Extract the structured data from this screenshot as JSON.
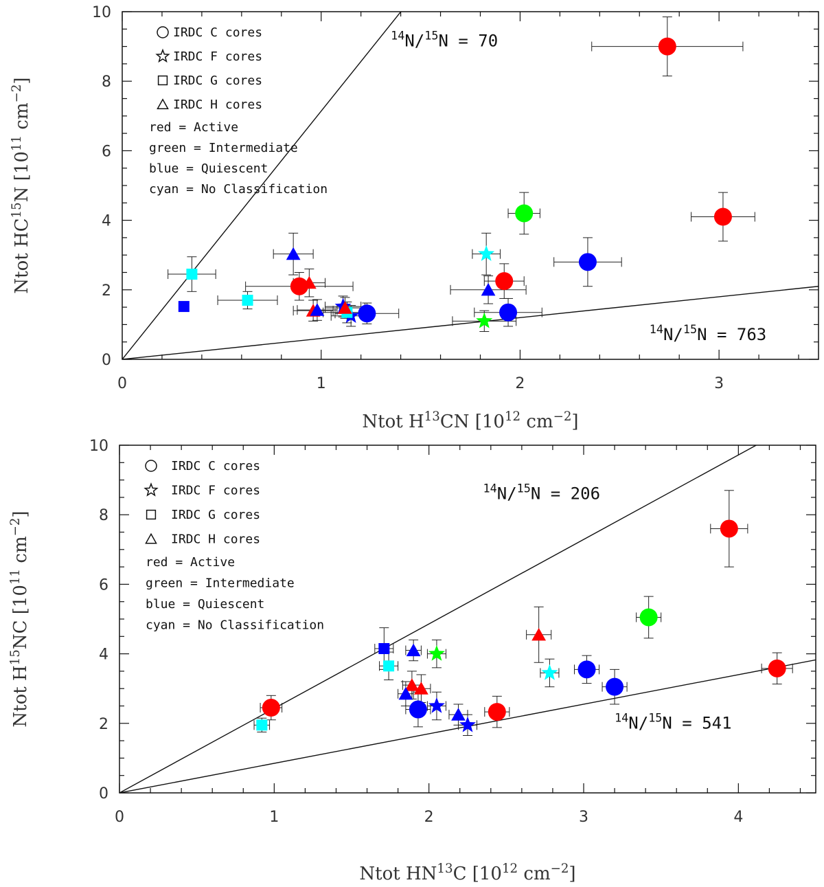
{
  "chart_data": [
    {
      "type": "scatter",
      "xlabel": "Ntot H13CN [1012 cm−2]",
      "xlabel_parts": [
        {
          "text": "Ntot H",
          "sup": false
        },
        {
          "text": "13",
          "sup": true
        },
        {
          "text": "CN [10",
          "sup": false
        },
        {
          "text": "12",
          "sup": true
        },
        {
          "text": " cm",
          "sup": false
        },
        {
          "text": "−2",
          "sup": true
        },
        {
          "text": "]",
          "sup": false
        }
      ],
      "ylabel": "Ntot HC15N [1011 cm−2]",
      "ylabel_parts": [
        {
          "text": "Ntot HC",
          "sup": false
        },
        {
          "text": "15",
          "sup": true
        },
        {
          "text": "N [10",
          "sup": false
        },
        {
          "text": "11",
          "sup": true
        },
        {
          "text": " cm",
          "sup": false
        },
        {
          "text": "−2",
          "sup": true
        },
        {
          "text": "]",
          "sup": false
        }
      ],
      "xlim": [
        0,
        3.5
      ],
      "ylim": [
        0,
        10
      ],
      "xticks": [
        "0",
        "1",
        "2",
        "3"
      ],
      "yticks": [
        "0",
        "2",
        "4",
        "6",
        "8",
        "10"
      ],
      "legend": {
        "shapes": [
          {
            "shape": "circle",
            "label": "IRDC C cores"
          },
          {
            "shape": "star",
            "label": "IRDC F cores"
          },
          {
            "shape": "square",
            "label": "IRDC G cores"
          },
          {
            "shape": "triangle",
            "label": "IRDC H cores"
          }
        ],
        "colors": [
          "red = Active",
          "green = Intermediate",
          "blue = Quiescent",
          "cyan = No Classification"
        ]
      },
      "ratio_lines": [
        {
          "label_parts": [
            {
              "text": "14",
              "sup": true
            },
            {
              "text": "N/",
              "sup": false
            },
            {
              "text": "15",
              "sup": true
            },
            {
              "text": "N = 70",
              "sup": false
            }
          ],
          "slope": 7.14,
          "text_x": 1.35,
          "text_y": 9.0
        },
        {
          "label_parts": [
            {
              "text": "14",
              "sup": true
            },
            {
              "text": "N/",
              "sup": false
            },
            {
              "text": "15",
              "sup": true
            },
            {
              "text": "N = 763",
              "sup": false
            }
          ],
          "slope": 0.6,
          "text_x": 2.65,
          "text_y": 0.55
        }
      ],
      "colors": {
        "red": "#ff0000",
        "green": "#00ff00",
        "blue": "#0000ff",
        "cyan": "#00ffff"
      },
      "points": [
        {
          "x": 2.74,
          "y": 9.0,
          "xerr": 0.38,
          "yerr": 0.85,
          "shape": "circle",
          "color": "red"
        },
        {
          "x": 3.02,
          "y": 4.1,
          "xerr": 0.16,
          "yerr": 0.7,
          "shape": "circle",
          "color": "red"
        },
        {
          "x": 2.02,
          "y": 4.2,
          "xerr": 0.08,
          "yerr": 0.6,
          "shape": "circle",
          "color": "green"
        },
        {
          "x": 2.34,
          "y": 2.8,
          "xerr": 0.17,
          "yerr": 0.7,
          "shape": "circle",
          "color": "blue"
        },
        {
          "x": 1.92,
          "y": 2.25,
          "xerr": 0.1,
          "yerr": 0.5,
          "shape": "circle",
          "color": "red"
        },
        {
          "x": 1.94,
          "y": 1.35,
          "xerr": 0.17,
          "yerr": 0.4,
          "shape": "circle",
          "color": "blue"
        },
        {
          "x": 0.89,
          "y": 2.1,
          "xerr": 0.27,
          "yerr": 0.4,
          "shape": "circle",
          "color": "red"
        },
        {
          "x": 1.23,
          "y": 1.32,
          "xerr": 0.16,
          "yerr": 0.3,
          "shape": "circle",
          "color": "blue"
        },
        {
          "x": 1.83,
          "y": 3.03,
          "xerr": 0.07,
          "yerr": 0.6,
          "shape": "star",
          "color": "cyan"
        },
        {
          "x": 1.82,
          "y": 1.1,
          "xerr": 0.16,
          "yerr": 0.3,
          "shape": "star",
          "color": "green"
        },
        {
          "x": 1.11,
          "y": 1.52,
          "xerr": 0.09,
          "yerr": 0.3,
          "shape": "star",
          "color": "blue"
        },
        {
          "x": 1.15,
          "y": 1.25,
          "xerr": 0.1,
          "yerr": 0.3,
          "shape": "star",
          "color": "blue"
        },
        {
          "x": 0.31,
          "y": 1.52,
          "xerr": 0.0,
          "yerr": 0.0,
          "shape": "square",
          "color": "blue"
        },
        {
          "x": 0.35,
          "y": 2.45,
          "xerr": 0.12,
          "yerr": 0.5,
          "shape": "square",
          "color": "cyan"
        },
        {
          "x": 0.63,
          "y": 1.7,
          "xerr": 0.15,
          "yerr": 0.25,
          "shape": "square",
          "color": "cyan"
        },
        {
          "x": 1.13,
          "y": 1.35,
          "xerr": 0.12,
          "yerr": 0.3,
          "shape": "square",
          "color": "cyan"
        },
        {
          "x": 0.86,
          "y": 3.03,
          "xerr": 0.1,
          "yerr": 0.6,
          "shape": "triangle",
          "color": "blue"
        },
        {
          "x": 0.94,
          "y": 2.2,
          "xerr": 0.08,
          "yerr": 0.4,
          "shape": "triangle",
          "color": "red"
        },
        {
          "x": 0.96,
          "y": 1.4,
          "xerr": 0.1,
          "yerr": 0.3,
          "shape": "triangle",
          "color": "red"
        },
        {
          "x": 0.98,
          "y": 1.42,
          "xerr": 0.1,
          "yerr": 0.3,
          "shape": "triangle",
          "color": "blue"
        },
        {
          "x": 1.12,
          "y": 1.48,
          "xerr": 0.1,
          "yerr": 0.3,
          "shape": "triangle",
          "color": "red"
        },
        {
          "x": 1.84,
          "y": 2.0,
          "xerr": 0.19,
          "yerr": 0.4,
          "shape": "triangle",
          "color": "blue"
        }
      ]
    },
    {
      "type": "scatter",
      "xlabel": "Ntot HN13C [1012 cm−2]",
      "xlabel_parts": [
        {
          "text": "Ntot HN",
          "sup": false
        },
        {
          "text": "13",
          "sup": true
        },
        {
          "text": "C [10",
          "sup": false
        },
        {
          "text": "12",
          "sup": true
        },
        {
          "text": " cm",
          "sup": false
        },
        {
          "text": "−2",
          "sup": true
        },
        {
          "text": "]",
          "sup": false
        }
      ],
      "ylabel": "Ntot H15NC [1011 cm−2]",
      "ylabel_parts": [
        {
          "text": "Ntot H",
          "sup": false
        },
        {
          "text": "15",
          "sup": true
        },
        {
          "text": "NC [10",
          "sup": false
        },
        {
          "text": "11",
          "sup": true
        },
        {
          "text": " cm",
          "sup": false
        },
        {
          "text": "−2",
          "sup": true
        },
        {
          "text": "]",
          "sup": false
        }
      ],
      "xlim": [
        0,
        4.5
      ],
      "ylim": [
        0,
        10
      ],
      "xticks": [
        "0",
        "1",
        "2",
        "3",
        "4"
      ],
      "yticks": [
        "0",
        "2",
        "4",
        "6",
        "8",
        "10"
      ],
      "legend": {
        "shapes": [
          {
            "shape": "circle",
            "label": "IRDC C cores"
          },
          {
            "shape": "star",
            "label": "IRDC F cores"
          },
          {
            "shape": "square",
            "label": "IRDC G cores"
          },
          {
            "shape": "triangle",
            "label": "IRDC H cores"
          }
        ],
        "colors": [
          "red = Active",
          "green = Intermediate",
          "blue = Quiescent",
          "cyan = No Classification"
        ]
      },
      "ratio_lines": [
        {
          "label_parts": [
            {
              "text": "14",
              "sup": true
            },
            {
              "text": "N/",
              "sup": false
            },
            {
              "text": "15",
              "sup": true
            },
            {
              "text": "N = 206",
              "sup": false
            }
          ],
          "slope": 2.43,
          "text_x": 2.35,
          "text_y": 8.45
        },
        {
          "label_parts": [
            {
              "text": "14",
              "sup": true
            },
            {
              "text": "N/",
              "sup": false
            },
            {
              "text": "15",
              "sup": true
            },
            {
              "text": "N = 541",
              "sup": false
            }
          ],
          "slope": 0.85,
          "text_x": 3.2,
          "text_y": 1.85
        }
      ],
      "colors": {
        "red": "#ff0000",
        "green": "#00ff00",
        "blue": "#0000ff",
        "cyan": "#00ffff"
      },
      "points": [
        {
          "x": 3.94,
          "y": 7.6,
          "xerr": 0.12,
          "yerr": 1.1,
          "shape": "circle",
          "color": "red"
        },
        {
          "x": 4.25,
          "y": 3.58,
          "xerr": 0.1,
          "yerr": 0.45,
          "shape": "circle",
          "color": "red"
        },
        {
          "x": 3.42,
          "y": 5.05,
          "xerr": 0.08,
          "yerr": 0.6,
          "shape": "circle",
          "color": "green"
        },
        {
          "x": 3.02,
          "y": 3.55,
          "xerr": 0.08,
          "yerr": 0.4,
          "shape": "circle",
          "color": "blue"
        },
        {
          "x": 3.2,
          "y": 3.05,
          "xerr": 0.08,
          "yerr": 0.5,
          "shape": "circle",
          "color": "blue"
        },
        {
          "x": 2.44,
          "y": 2.33,
          "xerr": 0.08,
          "yerr": 0.45,
          "shape": "circle",
          "color": "red"
        },
        {
          "x": 0.98,
          "y": 2.45,
          "xerr": 0.07,
          "yerr": 0.35,
          "shape": "circle",
          "color": "red"
        },
        {
          "x": 1.93,
          "y": 2.4,
          "xerr": 0.08,
          "yerr": 0.5,
          "shape": "circle",
          "color": "blue"
        },
        {
          "x": 2.78,
          "y": 3.45,
          "xerr": 0.06,
          "yerr": 0.4,
          "shape": "star",
          "color": "cyan"
        },
        {
          "x": 2.05,
          "y": 4.0,
          "xerr": 0.06,
          "yerr": 0.4,
          "shape": "star",
          "color": "green"
        },
        {
          "x": 2.05,
          "y": 2.5,
          "xerr": 0.06,
          "yerr": 0.4,
          "shape": "star",
          "color": "blue"
        },
        {
          "x": 2.25,
          "y": 1.95,
          "xerr": 0.06,
          "yerr": 0.3,
          "shape": "star",
          "color": "blue"
        },
        {
          "x": 1.71,
          "y": 4.15,
          "xerr": 0.06,
          "yerr": 0.6,
          "shape": "square",
          "color": "blue"
        },
        {
          "x": 1.74,
          "y": 3.65,
          "xerr": 0.06,
          "yerr": 0.4,
          "shape": "square",
          "color": "cyan"
        },
        {
          "x": 0.92,
          "y": 1.95,
          "xerr": 0.05,
          "yerr": 0.2,
          "shape": "square",
          "color": "cyan"
        },
        {
          "x": 1.9,
          "y": 4.1,
          "xerr": 0.05,
          "yerr": 0.3,
          "shape": "triangle",
          "color": "blue"
        },
        {
          "x": 2.71,
          "y": 4.55,
          "xerr": 0.08,
          "yerr": 0.8,
          "shape": "triangle",
          "color": "red"
        },
        {
          "x": 1.89,
          "y": 3.1,
          "xerr": 0.06,
          "yerr": 0.4,
          "shape": "triangle",
          "color": "red"
        },
        {
          "x": 1.95,
          "y": 3.0,
          "xerr": 0.06,
          "yerr": 0.4,
          "shape": "triangle",
          "color": "red"
        },
        {
          "x": 1.85,
          "y": 2.85,
          "xerr": 0.05,
          "yerr": 0.35,
          "shape": "triangle",
          "color": "blue"
        },
        {
          "x": 2.19,
          "y": 2.25,
          "xerr": 0.06,
          "yerr": 0.3,
          "shape": "triangle",
          "color": "blue"
        }
      ]
    }
  ]
}
